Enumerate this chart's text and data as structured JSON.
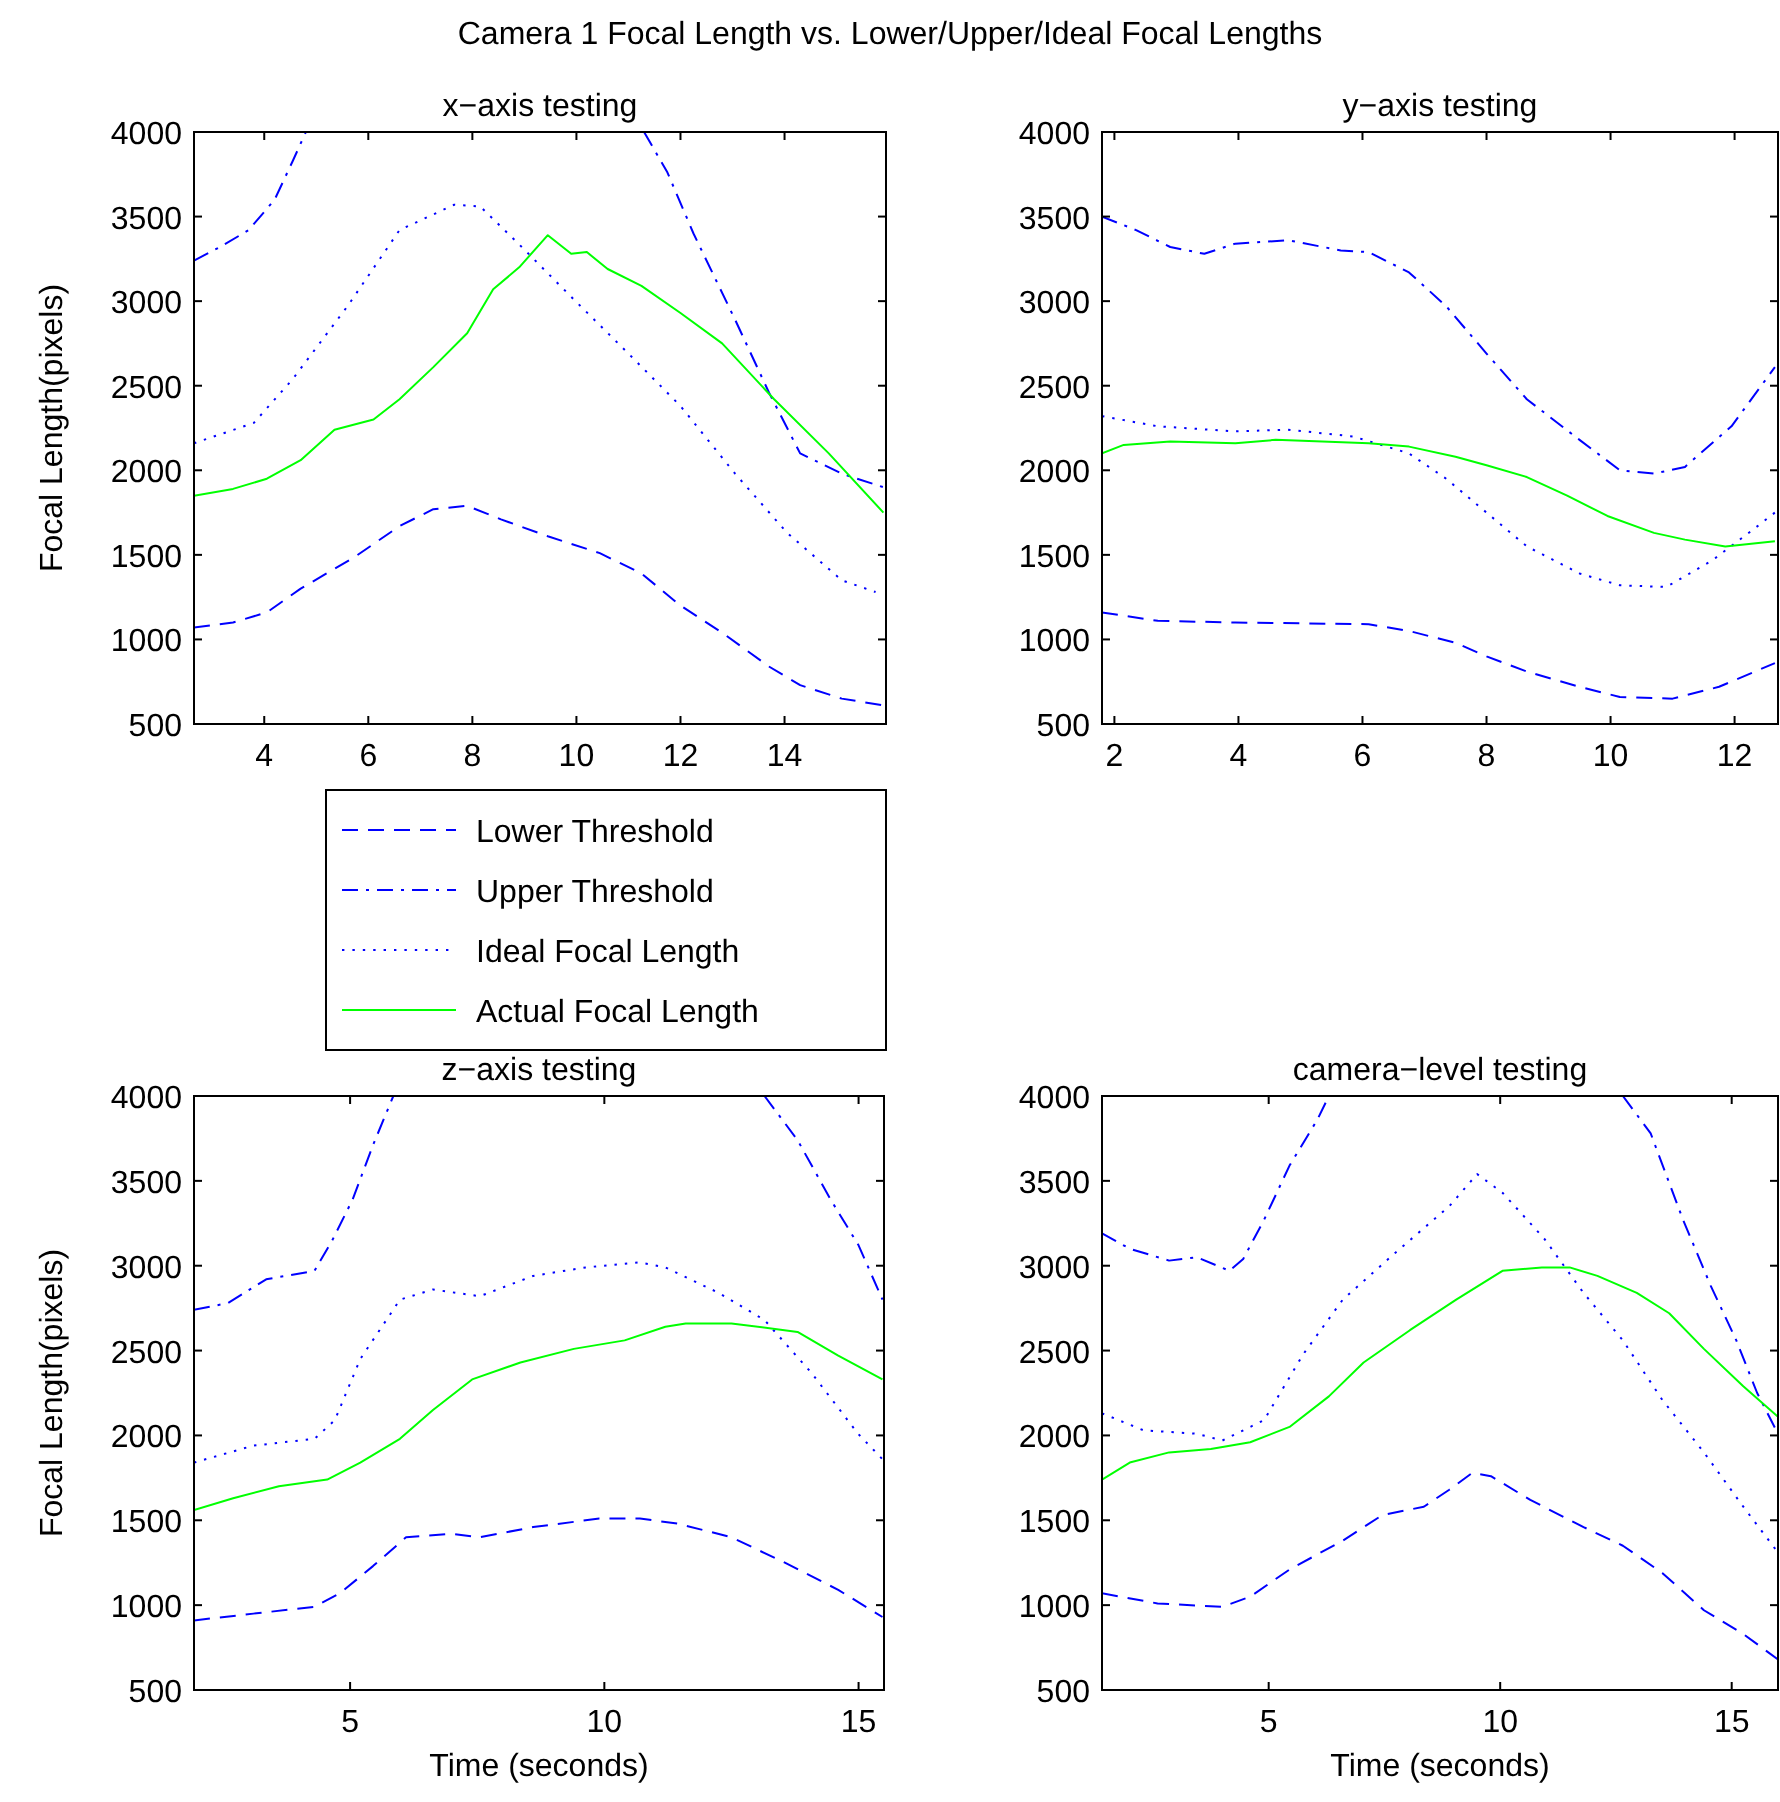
{
  "chart_data": [
    {
      "type": "line",
      "title": "x−axis testing",
      "ylabel": "Focal Length(pixels)",
      "annotations": [
        "Camera 1 Focal Length vs. Lower/Upper/Ideal Focal Lengths"
      ],
      "legend": "bottom right",
      "xlim": [
        2.65,
        15.95
      ],
      "xticks": [
        4,
        6,
        8,
        10,
        12,
        14
      ],
      "ylim": [
        500,
        4000
      ],
      "yticks": [
        500,
        1000,
        1500,
        2000,
        2500,
        3000,
        3500,
        4000
      ],
      "series": [
        {
          "name": "Lower Threshold",
          "color": "#0000ff",
          "line_style": "dashed",
          "x": [
            2.65,
            3.4,
            4.05,
            4.7,
            5.75,
            6.6,
            7.25,
            7.9,
            8.55,
            9.45,
            10.45,
            11.25,
            12,
            12.8,
            13.7,
            14.3,
            15.1,
            15.9
          ],
          "values": [
            1070,
            1100,
            1160,
            1300,
            1490,
            1670,
            1770,
            1790,
            1710,
            1610,
            1510,
            1390,
            1200,
            1040,
            840,
            730,
            650,
            610
          ]
        },
        {
          "name": "Upper Threshold",
          "color": "#0000ff",
          "line_style": "dashdot",
          "x": [
            2.65,
            3.15,
            3.7,
            4.2,
            4.55,
            4.8,
            8,
            11.3,
            11.75,
            12.25,
            13.05,
            13.7,
            14.3,
            15.1,
            15.9
          ],
          "values": [
            3240,
            3320,
            3420,
            3600,
            3830,
            4000,
            null,
            4000,
            3760,
            3400,
            2890,
            2460,
            2100,
            1980,
            1900
          ]
        },
        {
          "name": "Ideal Focal Length",
          "color": "#0000ff",
          "line_style": "dotted",
          "x": [
            2.65,
            3.8,
            4.55,
            5.6,
            6.6,
            7.65,
            8.15,
            8.95,
            9.95,
            11,
            12,
            13.05,
            14.05,
            15.1,
            15.75
          ],
          "values": [
            2160,
            2280,
            2540,
            2970,
            3420,
            3570,
            3560,
            3320,
            3010,
            2690,
            2380,
            1980,
            1630,
            1350,
            1280
          ]
        },
        {
          "name": "Actual Focal Length",
          "color": "#00ff00",
          "line_style": "solid",
          "x": [
            2.65,
            3.4,
            4.05,
            4.7,
            5.35,
            6.1,
            6.6,
            7.25,
            7.9,
            8.4,
            8.9,
            9.45,
            9.9,
            10.2,
            10.6,
            11.25,
            12,
            12.8,
            13.8,
            14.85,
            15.9
          ],
          "values": [
            1850,
            1890,
            1950,
            2060,
            2240,
            2300,
            2420,
            2610,
            2810,
            3070,
            3200,
            3390,
            3280,
            3290,
            3190,
            3090,
            2930,
            2750,
            2420,
            2100,
            1750
          ]
        }
      ]
    },
    {
      "type": "line",
      "title": "y−axis testing",
      "xlim": [
        1.8,
        12.7
      ],
      "xticks": [
        2,
        4,
        6,
        8,
        10,
        12
      ],
      "ylim": [
        500,
        4000
      ],
      "yticks": [
        500,
        1000,
        1500,
        2000,
        2500,
        3000,
        3500,
        4000
      ],
      "series": [
        {
          "color": "#0000ff",
          "line_style": "dashed",
          "x": [
            1.8,
            2.7,
            3.95,
            6.1,
            6.75,
            7.5,
            8,
            8.65,
            9.5,
            10.15,
            11,
            11.75,
            12.65
          ],
          "values": [
            1160,
            1110,
            1100,
            1090,
            1050,
            980,
            900,
            810,
            720,
            660,
            650,
            720,
            860
          ]
        },
        {
          "color": "#0000ff",
          "line_style": "dashdot",
          "x": [
            1.8,
            2.35,
            2.9,
            3.45,
            3.95,
            4.8,
            5.65,
            6.1,
            6.75,
            7.35,
            8,
            8.65,
            9.5,
            10.15,
            10.7,
            11.2,
            11.95,
            12.65
          ],
          "values": [
            3500,
            3420,
            3320,
            3280,
            3340,
            3360,
            3300,
            3290,
            3170,
            2970,
            2690,
            2420,
            2180,
            2000,
            1980,
            2020,
            2260,
            2610
          ]
        },
        {
          "color": "#0000ff",
          "line_style": "dotted",
          "x": [
            1.8,
            2.7,
            3.95,
            4.8,
            5.85,
            6.75,
            7.35,
            8,
            8.65,
            9.5,
            10.15,
            10.9,
            11.65,
            12.3,
            12.65
          ],
          "values": [
            2320,
            2260,
            2230,
            2240,
            2200,
            2100,
            1950,
            1750,
            1550,
            1390,
            1320,
            1310,
            1470,
            1650,
            1750
          ]
        },
        {
          "color": "#00ff00",
          "line_style": "solid",
          "x": [
            1.8,
            2.15,
            2.9,
            3.95,
            4.6,
            5.35,
            6.1,
            6.75,
            7.5,
            8,
            8.65,
            9.3,
            9.95,
            10.7,
            11.2,
            11.85,
            12.65
          ],
          "values": [
            2100,
            2150,
            2170,
            2160,
            2180,
            2170,
            2160,
            2140,
            2080,
            2030,
            1960,
            1850,
            1730,
            1630,
            1590,
            1550,
            1580
          ]
        }
      ]
    },
    {
      "type": "line",
      "title": "z−axis testing",
      "xlabel": "Time (seconds)",
      "ylabel": "Focal Length(pixels)",
      "xlim": [
        1.93,
        15.5
      ],
      "xticks": [
        5,
        10,
        15
      ],
      "ylim": [
        500,
        4000
      ],
      "yticks": [
        500,
        1000,
        1500,
        2000,
        2500,
        3000,
        3500,
        4000
      ],
      "series": [
        {
          "color": "#0000ff",
          "line_style": "dashed",
          "x": [
            1.93,
            3.1,
            4.3,
            4.8,
            5.45,
            6.1,
            7,
            7.55,
            8.6,
            9.9,
            10.7,
            11.45,
            12.5,
            13.55,
            14.6,
            15.47
          ],
          "values": [
            910,
            950,
            990,
            1070,
            1230,
            1400,
            1420,
            1400,
            1460,
            1510,
            1510,
            1480,
            1400,
            1250,
            1090,
            930
          ]
        },
        {
          "color": "#0000ff",
          "line_style": "dashdot",
          "x": [
            1.93,
            2.6,
            3.35,
            4.3,
            4.65,
            5.05,
            5.45,
            5.85,
            10,
            13.15,
            13.8,
            14.45,
            15,
            15.47
          ],
          "values": [
            2740,
            2780,
            2920,
            2970,
            3150,
            3390,
            3710,
            4000,
            null,
            4000,
            3740,
            3390,
            3120,
            2800
          ]
        },
        {
          "color": "#0000ff",
          "line_style": "dotted",
          "x": [
            1.93,
            3.1,
            4.3,
            4.7,
            5.2,
            5.98,
            6.63,
            7.55,
            8.6,
            9.63,
            10.68,
            11.2,
            12.25,
            13.15,
            14.07,
            14.99,
            15.47
          ],
          "values": [
            1840,
            1940,
            1980,
            2090,
            2450,
            2800,
            2860,
            2820,
            2940,
            2990,
            3020,
            2990,
            2840,
            2680,
            2370,
            2010,
            1860
          ]
        },
        {
          "color": "#00ff00",
          "line_style": "solid",
          "x": [
            1.93,
            2.7,
            3.6,
            4.55,
            5.2,
            5.98,
            6.63,
            7.4,
            8.35,
            9.4,
            10.4,
            11.2,
            11.6,
            12.5,
            13.8,
            14.6,
            15.47
          ],
          "values": [
            1560,
            1630,
            1700,
            1740,
            1840,
            1980,
            2150,
            2330,
            2430,
            2510,
            2560,
            2640,
            2660,
            2660,
            2610,
            2470,
            2330
          ]
        }
      ]
    },
    {
      "type": "line",
      "title": "camera−level testing",
      "xlabel": "Time (seconds)",
      "xlim": [
        1.4,
        16
      ],
      "xticks": [
        5,
        10,
        15
      ],
      "ylim": [
        500,
        4000
      ],
      "yticks": [
        500,
        1000,
        1500,
        2000,
        2500,
        3000,
        3500,
        4000
      ],
      "series": [
        {
          "color": "#0000ff",
          "line_style": "dashed",
          "x": [
            1.4,
            2.6,
            4,
            4.6,
            5.45,
            6.6,
            7.45,
            8.35,
            8.9,
            9.4,
            9.8,
            10.65,
            11.8,
            12.65,
            13.5,
            14.4,
            15.25,
            16
          ],
          "values": [
            1070,
            1010,
            990,
            1050,
            1210,
            1380,
            1530,
            1580,
            1680,
            1780,
            1760,
            1620,
            1460,
            1350,
            1190,
            970,
            830,
            680
          ]
        },
        {
          "color": "#0000ff",
          "line_style": "dashdot",
          "x": [
            1.4,
            2,
            2.85,
            3.45,
            4.15,
            4.45,
            4.9,
            5.45,
            6.05,
            6.3,
            9,
            12.65,
            13.25,
            13.95,
            14.55,
            15.1,
            15.55,
            16
          ],
          "values": [
            3190,
            3100,
            3030,
            3050,
            2970,
            3040,
            3270,
            3590,
            3860,
            4000,
            null,
            4000,
            3780,
            3270,
            2880,
            2560,
            2250,
            2010
          ]
        },
        {
          "color": "#0000ff",
          "line_style": "dotted",
          "x": [
            1.4,
            2.3,
            3.45,
            4,
            4.9,
            5.75,
            6.6,
            7.75,
            8.9,
            9.5,
            10.05,
            10.95,
            11.8,
            12.65,
            13.5,
            14.4,
            15.25,
            16
          ],
          "values": [
            2130,
            2030,
            2010,
            1970,
            2090,
            2480,
            2800,
            3080,
            3350,
            3540,
            3430,
            3160,
            2840,
            2560,
            2210,
            1900,
            1580,
            1310
          ]
        },
        {
          "color": "#00ff00",
          "line_style": "solid",
          "x": [
            1.4,
            2,
            2.85,
            3.75,
            4.6,
            5.45,
            6.3,
            7.05,
            8.05,
            9.05,
            10.05,
            10.9,
            11.5,
            12.1,
            12.95,
            13.65,
            14.4,
            15.25,
            16
          ],
          "values": [
            1740,
            1840,
            1900,
            1920,
            1960,
            2050,
            2230,
            2430,
            2620,
            2800,
            2970,
            2990,
            2990,
            2940,
            2840,
            2720,
            2510,
            2290,
            2110
          ]
        }
      ]
    }
  ]
}
